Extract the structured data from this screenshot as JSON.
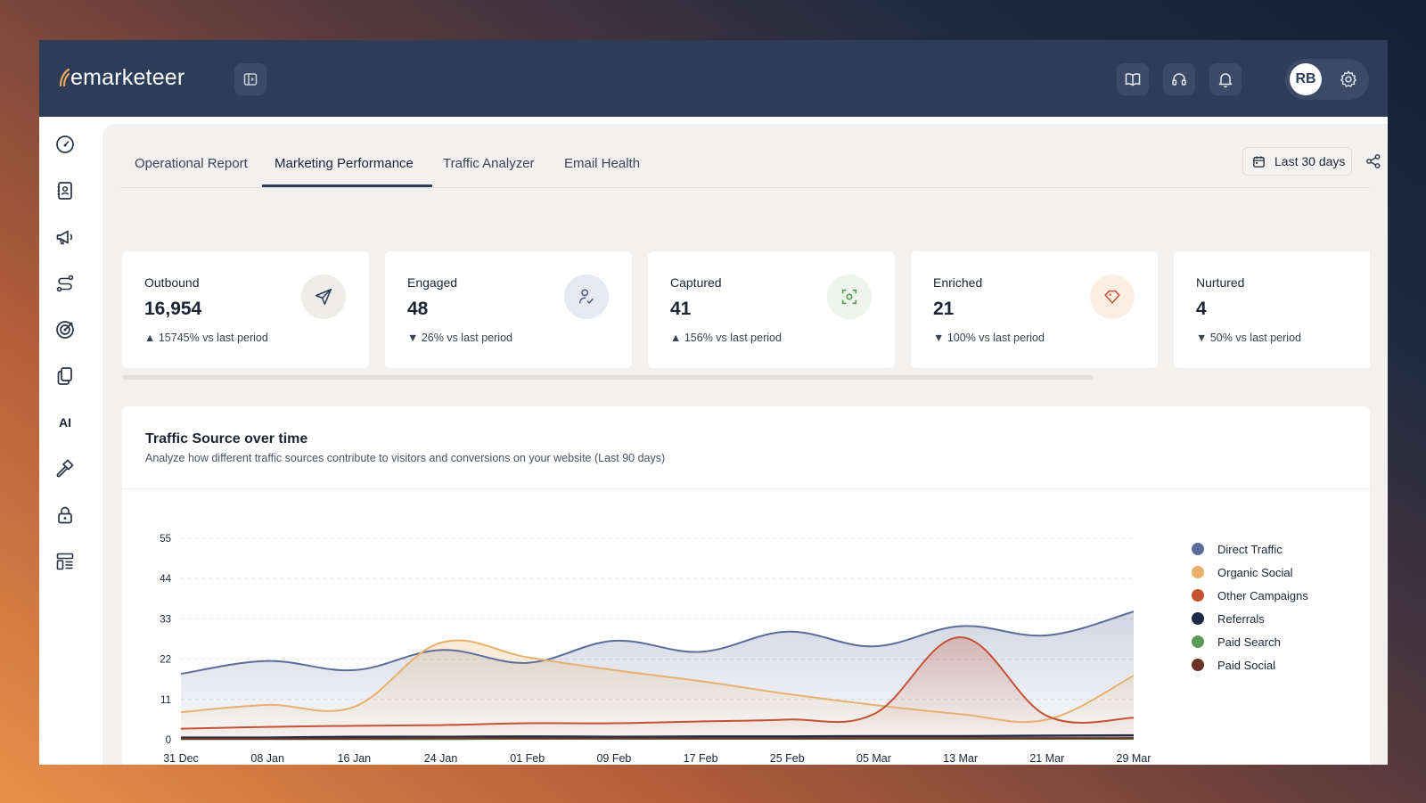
{
  "app": {
    "brand": "emarketeer",
    "user_initials": "RB"
  },
  "header": {
    "icons": [
      "sidebar-toggle-icon",
      "book-icon",
      "headset-icon",
      "bell-icon",
      "gear-icon"
    ]
  },
  "sidebar": {
    "items": [
      {
        "icon": "dashboard-gauge-icon"
      },
      {
        "icon": "contacts-book-icon"
      },
      {
        "icon": "megaphone-icon"
      },
      {
        "icon": "route-icon"
      },
      {
        "icon": "target-icon"
      },
      {
        "icon": "copy-pages-icon"
      },
      {
        "label": "AI"
      },
      {
        "icon": "hammer-icon"
      },
      {
        "icon": "lock-icon"
      },
      {
        "icon": "forms-layout-icon"
      }
    ]
  },
  "tabs": [
    {
      "label": "Operational Report",
      "active": false
    },
    {
      "label": "Marketing Performance",
      "active": true
    },
    {
      "label": "Traffic Analyzer",
      "active": false
    },
    {
      "label": "Email Health",
      "active": false
    }
  ],
  "date_range": {
    "label": "Last 30 days"
  },
  "kpis": [
    {
      "label": "Outbound",
      "value": "16,954",
      "change": "▲ 15745% vs last period",
      "icon": "send-plane-icon",
      "icon_bg": "#eeedea",
      "icon_color": "#2d3c58"
    },
    {
      "label": "Engaged",
      "value": "48",
      "change": "▼ 26% vs last period",
      "icon": "user-check-icon",
      "icon_bg": "#e6e9ef",
      "icon_color": "#4a5a7a"
    },
    {
      "label": "Captured",
      "value": "41",
      "change": "▲ 156% vs last period",
      "icon": "capture-focus-icon",
      "icon_bg": "#eef3ec",
      "icon_color": "#4f9a55"
    },
    {
      "label": "Enriched",
      "value": "21",
      "change": "▼ 100% vs last period",
      "icon": "diamond-tag-icon",
      "icon_bg": "#fbeee4",
      "icon_color": "#c8553a"
    },
    {
      "label": "Nurtured",
      "value": "4",
      "change": "▼ 50% vs last period",
      "icon": "",
      "icon_bg": "#ffffff",
      "icon_color": "#2d3c58"
    }
  ],
  "chart": {
    "title": "Traffic Source over time",
    "subtitle": "Analyze how different traffic sources contribute to visitors and conversions on your website (Last 90 days)"
  },
  "chart_data": {
    "type": "area",
    "x": [
      "31 Dec",
      "08 Jan",
      "16 Jan",
      "24 Jan",
      "01 Feb",
      "09 Feb",
      "17 Feb",
      "25 Feb",
      "05 Mar",
      "13 Mar",
      "21 Mar",
      "29 Mar"
    ],
    "yticks": [
      0,
      11,
      22,
      33,
      44,
      55
    ],
    "ylim": [
      0,
      55
    ],
    "grid": true,
    "legend_position": "right",
    "series": [
      {
        "name": "Direct Traffic",
        "color": "#5c6d9a",
        "values": [
          18,
          21.5,
          19,
          24.5,
          21,
          27,
          24,
          29.5,
          25.5,
          31,
          28.5,
          35
        ]
      },
      {
        "name": "Organic Social",
        "color": "#e8b06e",
        "values": [
          7.5,
          9.5,
          9,
          26.5,
          22.5,
          19,
          16,
          12.5,
          9.5,
          7,
          5.5,
          17.5
        ]
      },
      {
        "name": "Other Campaigns",
        "color": "#c55234",
        "values": [
          3,
          3.5,
          3.8,
          4,
          4.5,
          4.5,
          5,
          5.5,
          7,
          28,
          6.5,
          6
        ]
      },
      {
        "name": "Referrals",
        "color": "#1f2a44",
        "values": [
          0.6,
          0.6,
          0.8,
          0.8,
          0.9,
          0.8,
          0.9,
          0.9,
          1,
          1,
          1.1,
          1.2
        ]
      },
      {
        "name": "Paid Search",
        "color": "#5b9b55",
        "values": [
          0.2,
          0.2,
          0.2,
          0.2,
          0.3,
          0.3,
          0.3,
          0.3,
          0.3,
          0.3,
          0.3,
          0.3
        ]
      },
      {
        "name": "Paid Social",
        "color": "#6a3426",
        "values": [
          0.3,
          0.3,
          0.3,
          0.4,
          0.4,
          0.4,
          0.4,
          0.4,
          0.4,
          0.4,
          0.4,
          0.4
        ]
      }
    ]
  }
}
